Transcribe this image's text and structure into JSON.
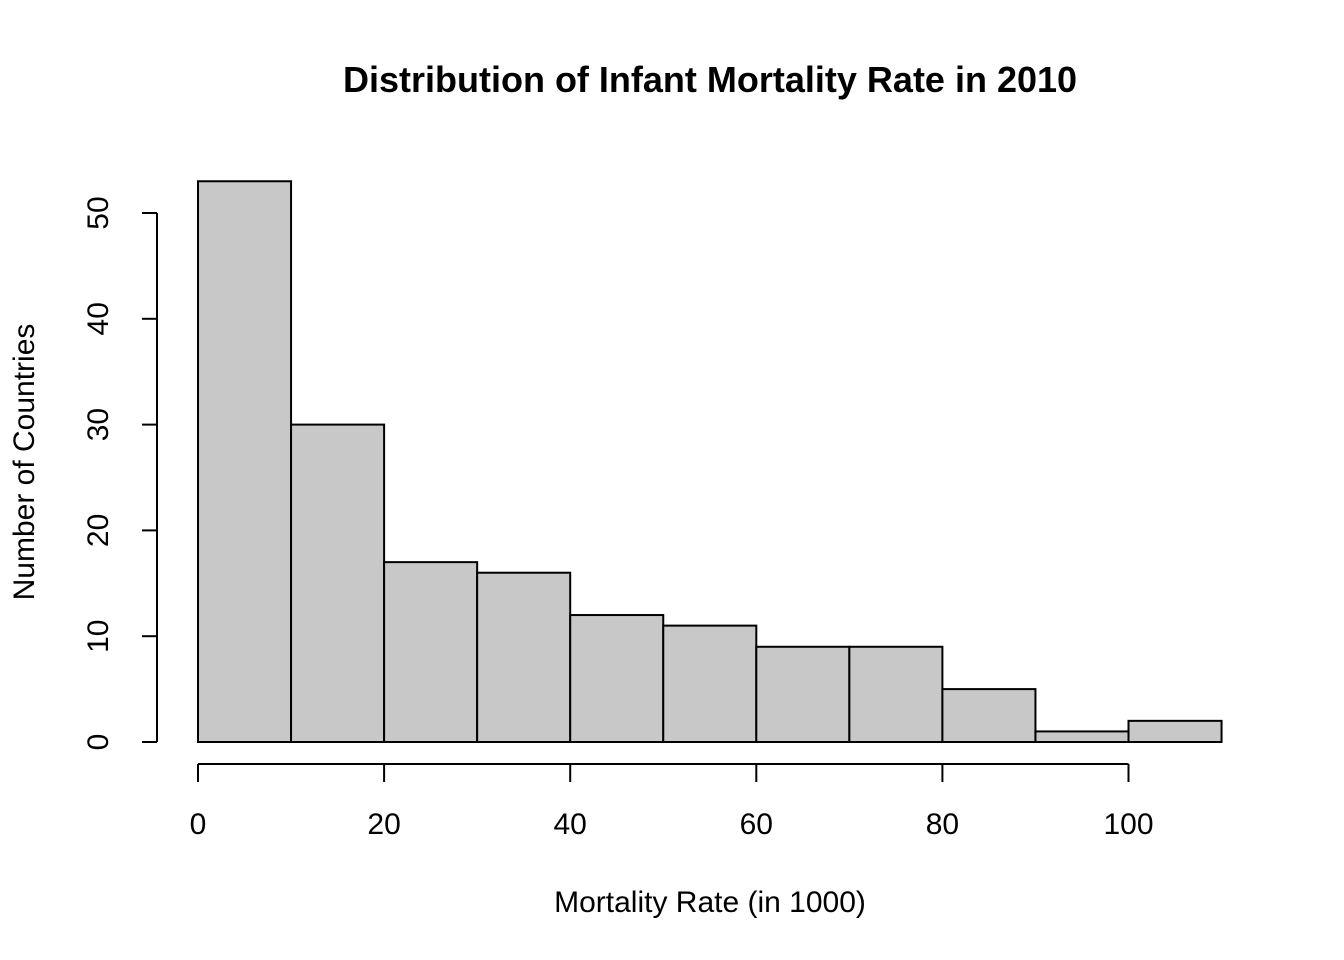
{
  "chart_data": {
    "type": "bar",
    "title": "Distribution of Infant Mortality Rate in 2010",
    "xlabel": "Mortality Rate (in 1000)",
    "ylabel": "Number of Countries",
    "bins": [
      {
        "start": 0,
        "end": 10,
        "count": 53
      },
      {
        "start": 10,
        "end": 20,
        "count": 30
      },
      {
        "start": 20,
        "end": 30,
        "count": 17
      },
      {
        "start": 30,
        "end": 40,
        "count": 16
      },
      {
        "start": 40,
        "end": 50,
        "count": 12
      },
      {
        "start": 50,
        "end": 60,
        "count": 11
      },
      {
        "start": 60,
        "end": 70,
        "count": 9
      },
      {
        "start": 70,
        "end": 80,
        "count": 9
      },
      {
        "start": 80,
        "end": 90,
        "count": 5
      },
      {
        "start": 90,
        "end": 100,
        "count": 1
      },
      {
        "start": 100,
        "end": 110,
        "count": 2
      }
    ],
    "xticks": [
      0,
      20,
      40,
      60,
      80,
      100
    ],
    "yticks": [
      0,
      10,
      20,
      30,
      40,
      50
    ],
    "xlim": [
      0,
      110
    ],
    "ylim": [
      0,
      53
    ],
    "grid": false,
    "legend": "none",
    "bar_color": "#c8c8c8",
    "edge_color": "#000000"
  }
}
